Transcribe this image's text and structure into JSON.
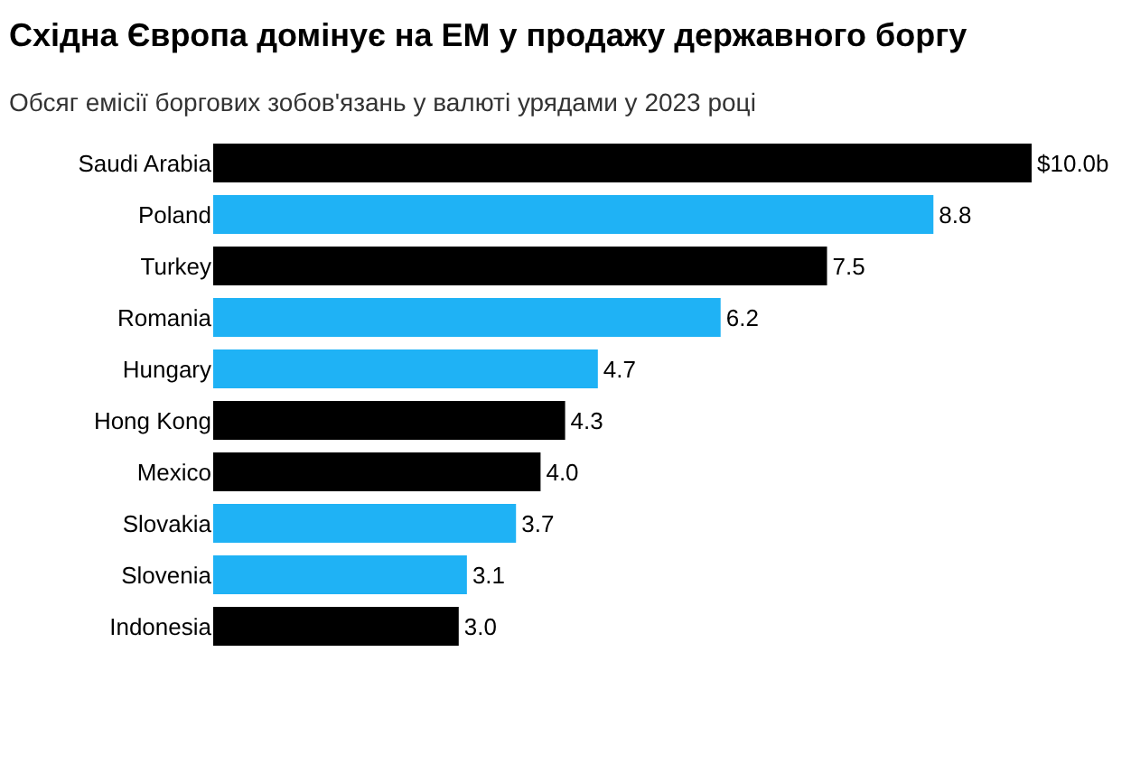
{
  "chart_data": {
    "type": "bar",
    "orientation": "horizontal",
    "title": "Східна Європа домінує на ЕМ у продажу державного боргу",
    "subtitle": "Обсяг емісії боргових зобов'язань у валюті урядами у 2023 році",
    "categories": [
      "Saudi Arabia",
      "Poland",
      "Turkey",
      "Romania",
      "Hungary",
      "Hong Kong",
      "Mexico",
      "Slovakia",
      "Slovenia",
      "Indonesia"
    ],
    "values": [
      10.0,
      8.8,
      7.5,
      6.2,
      4.7,
      4.3,
      4.0,
      3.7,
      3.1,
      3.0
    ],
    "value_labels": [
      "$10.0b",
      "8.8",
      "7.5",
      "6.2",
      "4.7",
      "4.3",
      "4.0",
      "3.7",
      "3.1",
      "3.0"
    ],
    "colors": [
      "#000000",
      "#1fb2f5",
      "#000000",
      "#1fb2f5",
      "#1fb2f5",
      "#000000",
      "#000000",
      "#1fb2f5",
      "#1fb2f5",
      "#000000"
    ]
  }
}
